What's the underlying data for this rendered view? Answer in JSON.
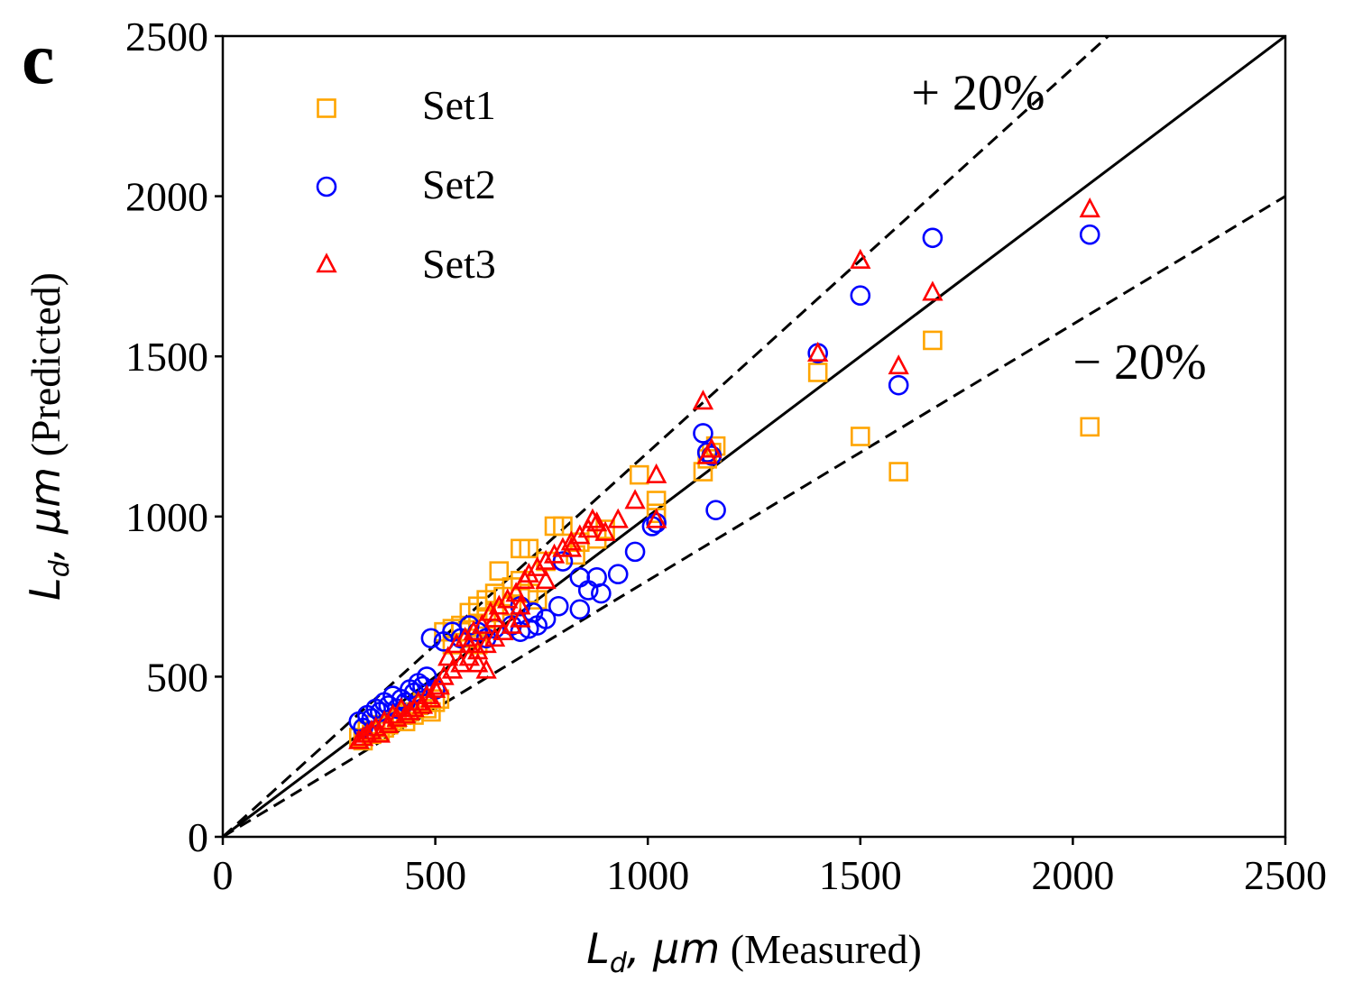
{
  "panel_label": "c",
  "chart_data": {
    "type": "scatter",
    "title": "",
    "xlabel": {
      "symbol": "L",
      "subscript": "d",
      "unit": ", μm",
      "qualifier": " (Measured)"
    },
    "ylabel": {
      "symbol": "L",
      "subscript": "d",
      "unit": ", μm",
      "qualifier": " (Predicted)"
    },
    "xlim": [
      0,
      2500
    ],
    "ylim": [
      0,
      2500
    ],
    "xticks": [
      0,
      500,
      1000,
      1500,
      2000,
      2500
    ],
    "yticks": [
      0,
      500,
      1000,
      1500,
      2000,
      2500
    ],
    "grid": false,
    "legend_position": "top-left",
    "reference_lines": [
      {
        "name": "identity",
        "slope": 1.0,
        "style": "solid"
      },
      {
        "name": "plus-20",
        "slope": 1.2,
        "style": "dashed"
      },
      {
        "name": "minus-20",
        "slope": 0.8,
        "style": "dashed"
      }
    ],
    "annotations": [
      {
        "text": "+ 20%",
        "x": 1620,
        "y": 2270
      },
      {
        "text": "− 20%",
        "x": 2000,
        "y": 1430
      }
    ],
    "series": [
      {
        "name": "Set1",
        "marker": "square",
        "color": "#FFA500",
        "points": [
          [
            320,
            310
          ],
          [
            340,
            330
          ],
          [
            360,
            350
          ],
          [
            380,
            340
          ],
          [
            400,
            360
          ],
          [
            420,
            380
          ],
          [
            440,
            390
          ],
          [
            460,
            410
          ],
          [
            480,
            400
          ],
          [
            500,
            420
          ],
          [
            330,
            300
          ],
          [
            350,
            320
          ],
          [
            370,
            330
          ],
          [
            390,
            350
          ],
          [
            410,
            370
          ],
          [
            430,
            360
          ],
          [
            450,
            380
          ],
          [
            470,
            420
          ],
          [
            490,
            390
          ],
          [
            510,
            430
          ],
          [
            520,
            640
          ],
          [
            540,
            650
          ],
          [
            560,
            660
          ],
          [
            580,
            700
          ],
          [
            600,
            720
          ],
          [
            620,
            740
          ],
          [
            640,
            760
          ],
          [
            660,
            750
          ],
          [
            680,
            780
          ],
          [
            700,
            800
          ],
          [
            650,
            830
          ],
          [
            700,
            900
          ],
          [
            720,
            900
          ],
          [
            780,
            970
          ],
          [
            800,
            970
          ],
          [
            840,
            920
          ],
          [
            880,
            930
          ],
          [
            900,
            960
          ],
          [
            830,
            880
          ],
          [
            760,
            860
          ],
          [
            540,
            600
          ],
          [
            580,
            620
          ],
          [
            600,
            660
          ],
          [
            620,
            680
          ],
          [
            560,
            640
          ],
          [
            640,
            700
          ],
          [
            680,
            720
          ],
          [
            720,
            760
          ],
          [
            740,
            740
          ],
          [
            600,
            600
          ],
          [
            980,
            1130
          ],
          [
            1020,
            1050
          ],
          [
            1020,
            1010
          ],
          [
            1130,
            1140
          ],
          [
            1150,
            1200
          ],
          [
            1160,
            1220
          ],
          [
            1140,
            1180
          ],
          [
            1400,
            1450
          ],
          [
            1500,
            1250
          ],
          [
            1590,
            1140
          ],
          [
            1670,
            1550
          ],
          [
            2040,
            1280
          ]
        ]
      },
      {
        "name": "Set2",
        "marker": "circle",
        "color": "#0000FF",
        "points": [
          [
            320,
            360
          ],
          [
            340,
            380
          ],
          [
            360,
            400
          ],
          [
            380,
            420
          ],
          [
            400,
            440
          ],
          [
            420,
            430
          ],
          [
            440,
            460
          ],
          [
            460,
            480
          ],
          [
            480,
            500
          ],
          [
            500,
            460
          ],
          [
            330,
            340
          ],
          [
            350,
            370
          ],
          [
            370,
            390
          ],
          [
            390,
            410
          ],
          [
            410,
            400
          ],
          [
            430,
            420
          ],
          [
            450,
            450
          ],
          [
            470,
            470
          ],
          [
            490,
            620
          ],
          [
            520,
            610
          ],
          [
            540,
            640
          ],
          [
            560,
            620
          ],
          [
            580,
            660
          ],
          [
            600,
            640
          ],
          [
            620,
            620
          ],
          [
            640,
            650
          ],
          [
            680,
            660
          ],
          [
            700,
            640
          ],
          [
            720,
            650
          ],
          [
            740,
            660
          ],
          [
            760,
            680
          ],
          [
            700,
            720
          ],
          [
            730,
            700
          ],
          [
            790,
            720
          ],
          [
            800,
            860
          ],
          [
            840,
            810
          ],
          [
            860,
            770
          ],
          [
            880,
            810
          ],
          [
            890,
            760
          ],
          [
            840,
            710
          ],
          [
            930,
            820
          ],
          [
            970,
            890
          ],
          [
            1010,
            970
          ],
          [
            1020,
            980
          ],
          [
            1160,
            1020
          ],
          [
            1130,
            1260
          ],
          [
            1140,
            1200
          ],
          [
            1150,
            1190
          ],
          [
            1400,
            1510
          ],
          [
            1500,
            1690
          ],
          [
            1590,
            1410
          ],
          [
            1670,
            1870
          ],
          [
            2040,
            1880
          ]
        ]
      },
      {
        "name": "Set3",
        "marker": "triangle",
        "color": "#FF0000",
        "points": [
          [
            320,
            300
          ],
          [
            340,
            320
          ],
          [
            360,
            340
          ],
          [
            380,
            360
          ],
          [
            400,
            380
          ],
          [
            420,
            400
          ],
          [
            440,
            390
          ],
          [
            460,
            420
          ],
          [
            480,
            440
          ],
          [
            500,
            460
          ],
          [
            330,
            310
          ],
          [
            350,
            330
          ],
          [
            370,
            320
          ],
          [
            390,
            350
          ],
          [
            410,
            370
          ],
          [
            430,
            380
          ],
          [
            450,
            400
          ],
          [
            470,
            410
          ],
          [
            490,
            430
          ],
          [
            510,
            470
          ],
          [
            520,
            500
          ],
          [
            540,
            520
          ],
          [
            560,
            540
          ],
          [
            580,
            560
          ],
          [
            600,
            580
          ],
          [
            620,
            600
          ],
          [
            640,
            620
          ],
          [
            660,
            640
          ],
          [
            680,
            660
          ],
          [
            700,
            680
          ],
          [
            530,
            560
          ],
          [
            550,
            600
          ],
          [
            570,
            620
          ],
          [
            590,
            640
          ],
          [
            610,
            660
          ],
          [
            630,
            700
          ],
          [
            650,
            720
          ],
          [
            670,
            740
          ],
          [
            690,
            760
          ],
          [
            710,
            800
          ],
          [
            720,
            820
          ],
          [
            740,
            840
          ],
          [
            760,
            860
          ],
          [
            780,
            880
          ],
          [
            800,
            900
          ],
          [
            820,
            920
          ],
          [
            840,
            940
          ],
          [
            860,
            960
          ],
          [
            880,
            980
          ],
          [
            900,
            950
          ],
          [
            600,
            540
          ],
          [
            620,
            520
          ],
          [
            580,
            600
          ],
          [
            640,
            680
          ],
          [
            700,
            720
          ],
          [
            760,
            800
          ],
          [
            820,
            900
          ],
          [
            870,
            990
          ],
          [
            970,
            1050
          ],
          [
            1020,
            1130
          ],
          [
            930,
            990
          ],
          [
            1020,
            990
          ],
          [
            1130,
            1360
          ],
          [
            1150,
            1210
          ],
          [
            1140,
            1190
          ],
          [
            1400,
            1510
          ],
          [
            1500,
            1800
          ],
          [
            1590,
            1470
          ],
          [
            1670,
            1700
          ],
          [
            2040,
            1960
          ]
        ]
      }
    ]
  }
}
